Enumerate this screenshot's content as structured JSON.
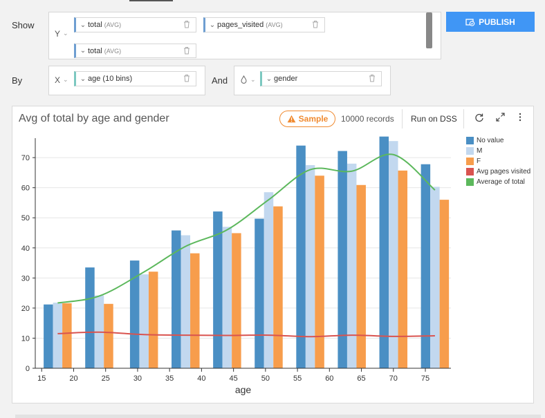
{
  "show_label": "Show",
  "by_label": "By",
  "and_label": "And",
  "y_axis_letter": "Y",
  "x_axis_letter": "X",
  "y_measures": [
    {
      "name": "total",
      "agg": "(AVG)"
    },
    {
      "name": "pages_visited",
      "agg": "(AVG)"
    },
    {
      "name": "total",
      "agg": "(AVG)"
    }
  ],
  "x_dimension": "age (10 bins)",
  "color_dimension": "gender",
  "publish_label": "PUBLISH",
  "chart_title": "Avg of total by age and gender",
  "sample_label": "Sample",
  "records_label": "10000 records",
  "run_on_label": "Run on DSS",
  "icons": [
    "publish-icon",
    "warning-icon",
    "refresh-icon",
    "expand-icon",
    "more-icon",
    "trash-icon",
    "chevron-down-icon",
    "drop-icon"
  ],
  "colors": {
    "accent": "#4096f5",
    "sample": "#f08a30"
  },
  "chart_data": {
    "type": "bar",
    "x": [
      17.5,
      24,
      31,
      37.5,
      44,
      50.5,
      57,
      63.5,
      70,
      76.5
    ],
    "series": [
      {
        "name": "No value",
        "type": "bar",
        "color": "#4a8fc4",
        "values": [
          21.2,
          33.5,
          35.8,
          45.8,
          52.1,
          49.7,
          74,
          72.2,
          77,
          67.8
        ]
      },
      {
        "name": "M",
        "type": "bar",
        "color": "#c2d8ef",
        "values": [
          21.8,
          24.2,
          31.2,
          44.2,
          47,
          58.5,
          67.5,
          68,
          75.5,
          60.3
        ]
      },
      {
        "name": "F",
        "type": "bar",
        "color": "#f79d4c",
        "values": [
          21.6,
          21.4,
          32.1,
          38.2,
          44.9,
          53.8,
          64,
          60.9,
          65.7,
          56
        ]
      },
      {
        "name": "Avg pages visited",
        "type": "line",
        "color": "#d9534f",
        "values": [
          11.5,
          12,
          11.2,
          11,
          10.9,
          11,
          10.5,
          11,
          10.6,
          10.8
        ]
      },
      {
        "name": "Average of total",
        "type": "line",
        "color": "#5cb85c",
        "values": [
          21.7,
          24,
          32,
          40.5,
          46,
          56,
          66,
          65.5,
          71,
          59.2
        ]
      }
    ],
    "xlabel": "age",
    "ylabel": "",
    "xlim": [
      14,
      79
    ],
    "ylim": [
      0,
      76
    ],
    "x_ticks": [
      15,
      20,
      25,
      30,
      35,
      40,
      45,
      50,
      55,
      60,
      65,
      70,
      75
    ],
    "y_ticks": [
      0,
      10,
      20,
      30,
      40,
      50,
      60,
      70
    ],
    "grid": true,
    "legend_position": "right"
  }
}
